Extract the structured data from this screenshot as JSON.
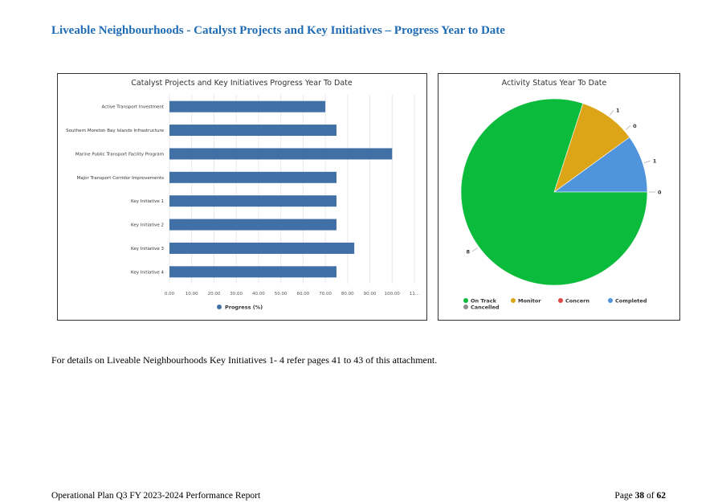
{
  "heading": "Liveable Neighbourhoods - Catalyst Projects and Key Initiatives – Progress Year to Date",
  "note": "For details on Liveable Neighbourhoods Key Initiatives 1- 4 refer pages 41 to 43 of this attachment.",
  "footer": {
    "left": "Operational Plan Q3 FY 2023-2024 Performance Report",
    "page_word": "Page",
    "page_current": "38",
    "page_of": "of",
    "page_total": "62"
  },
  "chart_data": [
    {
      "type": "bar",
      "orientation": "horizontal",
      "title": "Catalyst Projects and Key Initiatives Progress Year To Date",
      "categories": [
        "Active Transport Investment",
        "Southern Moreton Bay Islands Infrastructure",
        "Marine Public Transport Facility Program",
        "Major Transport Corridor Improvements",
        "Key Initiative 1",
        "Key Initiative 2",
        "Key Initiative 3",
        "Key Initiative 4"
      ],
      "series": [
        {
          "name": "Progress (%)",
          "color": "#4170a6",
          "values": [
            70,
            75,
            100,
            75,
            75,
            75,
            83,
            75
          ]
        }
      ],
      "xticks": [
        "0.00",
        "10.00",
        "20.00",
        "30.00",
        "40.00",
        "50.00",
        "60.00",
        "70.00",
        "80.00",
        "90.00",
        "100.00",
        "11..."
      ],
      "xlim": [
        0,
        110
      ],
      "grid": true,
      "legend": "bottom-center"
    },
    {
      "type": "pie",
      "title": "Activity Status Year To Date",
      "slices": [
        {
          "name": "On Track",
          "value": 8,
          "color": "#0bbb3c"
        },
        {
          "name": "Monitor",
          "value": 1,
          "color": "#dca518"
        },
        {
          "name": "Concern",
          "value": 0,
          "color": "#e04848"
        },
        {
          "name": "Completed",
          "value": 1,
          "color": "#5095dc"
        },
        {
          "name": "Cancelled",
          "value": 0,
          "color": "#8c8c8c"
        }
      ],
      "legend": "bottom"
    }
  ]
}
